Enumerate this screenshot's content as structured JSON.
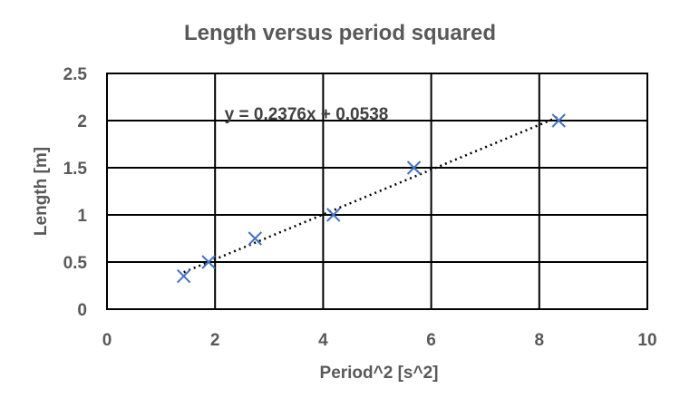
{
  "chart_data": {
    "type": "scatter",
    "title": "Length versus period squared",
    "xlabel": "Period^2 [s^2]",
    "ylabel": "Length [m]",
    "xlim": [
      0,
      10
    ],
    "ylim": [
      0,
      2.5
    ],
    "xticks": [
      0,
      2,
      4,
      6,
      8,
      10
    ],
    "yticks": [
      0,
      0.5,
      1,
      1.5,
      2,
      2.5
    ],
    "ytick_labels": [
      "0",
      "0.5",
      "1",
      "1.5",
      "2",
      "2.5"
    ],
    "grid": true,
    "marker_color": "#4472C4",
    "series": [
      {
        "x": [
          1.42,
          1.88,
          2.74,
          4.19,
          5.68,
          8.36
        ],
        "y": [
          0.35,
          0.5,
          0.75,
          1.0,
          1.5,
          2.0
        ]
      }
    ],
    "trendline": {
      "type": "linear",
      "slope": 0.2376,
      "intercept": 0.0538,
      "x_range": [
        1.42,
        8.36
      ],
      "equation": "y = 0.2376x + 0.0538"
    }
  }
}
